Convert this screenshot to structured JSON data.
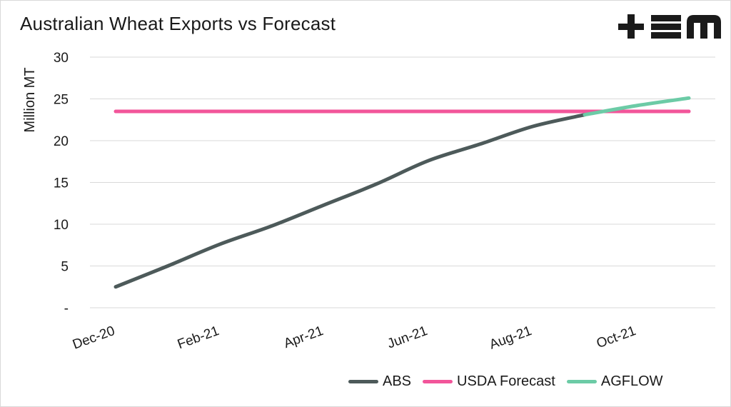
{
  "chart_data": {
    "type": "line",
    "title": "Australian Wheat Exports vs Forecast",
    "ylabel": "Million MT",
    "xlabel": "",
    "ylim": [
      0,
      30
    ],
    "y_ticks": [
      0,
      5,
      10,
      15,
      20,
      25,
      30
    ],
    "y_tick_labels": [
      "-",
      "5",
      "10",
      "15",
      "20",
      "25",
      "30"
    ],
    "x_tick_labels": [
      "Dec-20",
      "Feb-21",
      "Apr-21",
      "Jun-21",
      "Aug-21",
      "Oct-21"
    ],
    "x_months": [
      "Dec-20",
      "Jan-21",
      "Feb-21",
      "Mar-21",
      "Apr-21",
      "May-21",
      "Jun-21",
      "Jul-21",
      "Aug-21",
      "Sep-21",
      "Oct-21",
      "Nov-21"
    ],
    "grid": true,
    "legend_position": "bottom-right",
    "series": [
      {
        "name": "ABS",
        "color": "#4d5a5a",
        "x": [
          "Dec-20",
          "Jan-21",
          "Feb-21",
          "Mar-21",
          "Apr-21",
          "May-21",
          "Jun-21",
          "Jul-21",
          "Aug-21",
          "Sep-21"
        ],
        "values": [
          2.5,
          5.0,
          7.6,
          9.8,
          12.3,
          14.8,
          17.6,
          19.6,
          21.7,
          23.1
        ]
      },
      {
        "name": "USDA Forecast",
        "color": "#f2559a",
        "x": [
          "Dec-20",
          "Jan-21",
          "Feb-21",
          "Mar-21",
          "Apr-21",
          "May-21",
          "Jun-21",
          "Jul-21",
          "Aug-21",
          "Sep-21",
          "Oct-21",
          "Nov-21"
        ],
        "values": [
          23.5,
          23.5,
          23.5,
          23.5,
          23.5,
          23.5,
          23.5,
          23.5,
          23.5,
          23.5,
          23.5,
          23.5
        ]
      },
      {
        "name": "AGFLOW",
        "color": "#6ccba6",
        "x": [
          "Sep-21",
          "Oct-21",
          "Nov-21"
        ],
        "values": [
          23.1,
          24.2,
          25.1
        ]
      }
    ]
  },
  "logo": {
    "name": "tem-logo",
    "color": "#1a1a1a"
  }
}
